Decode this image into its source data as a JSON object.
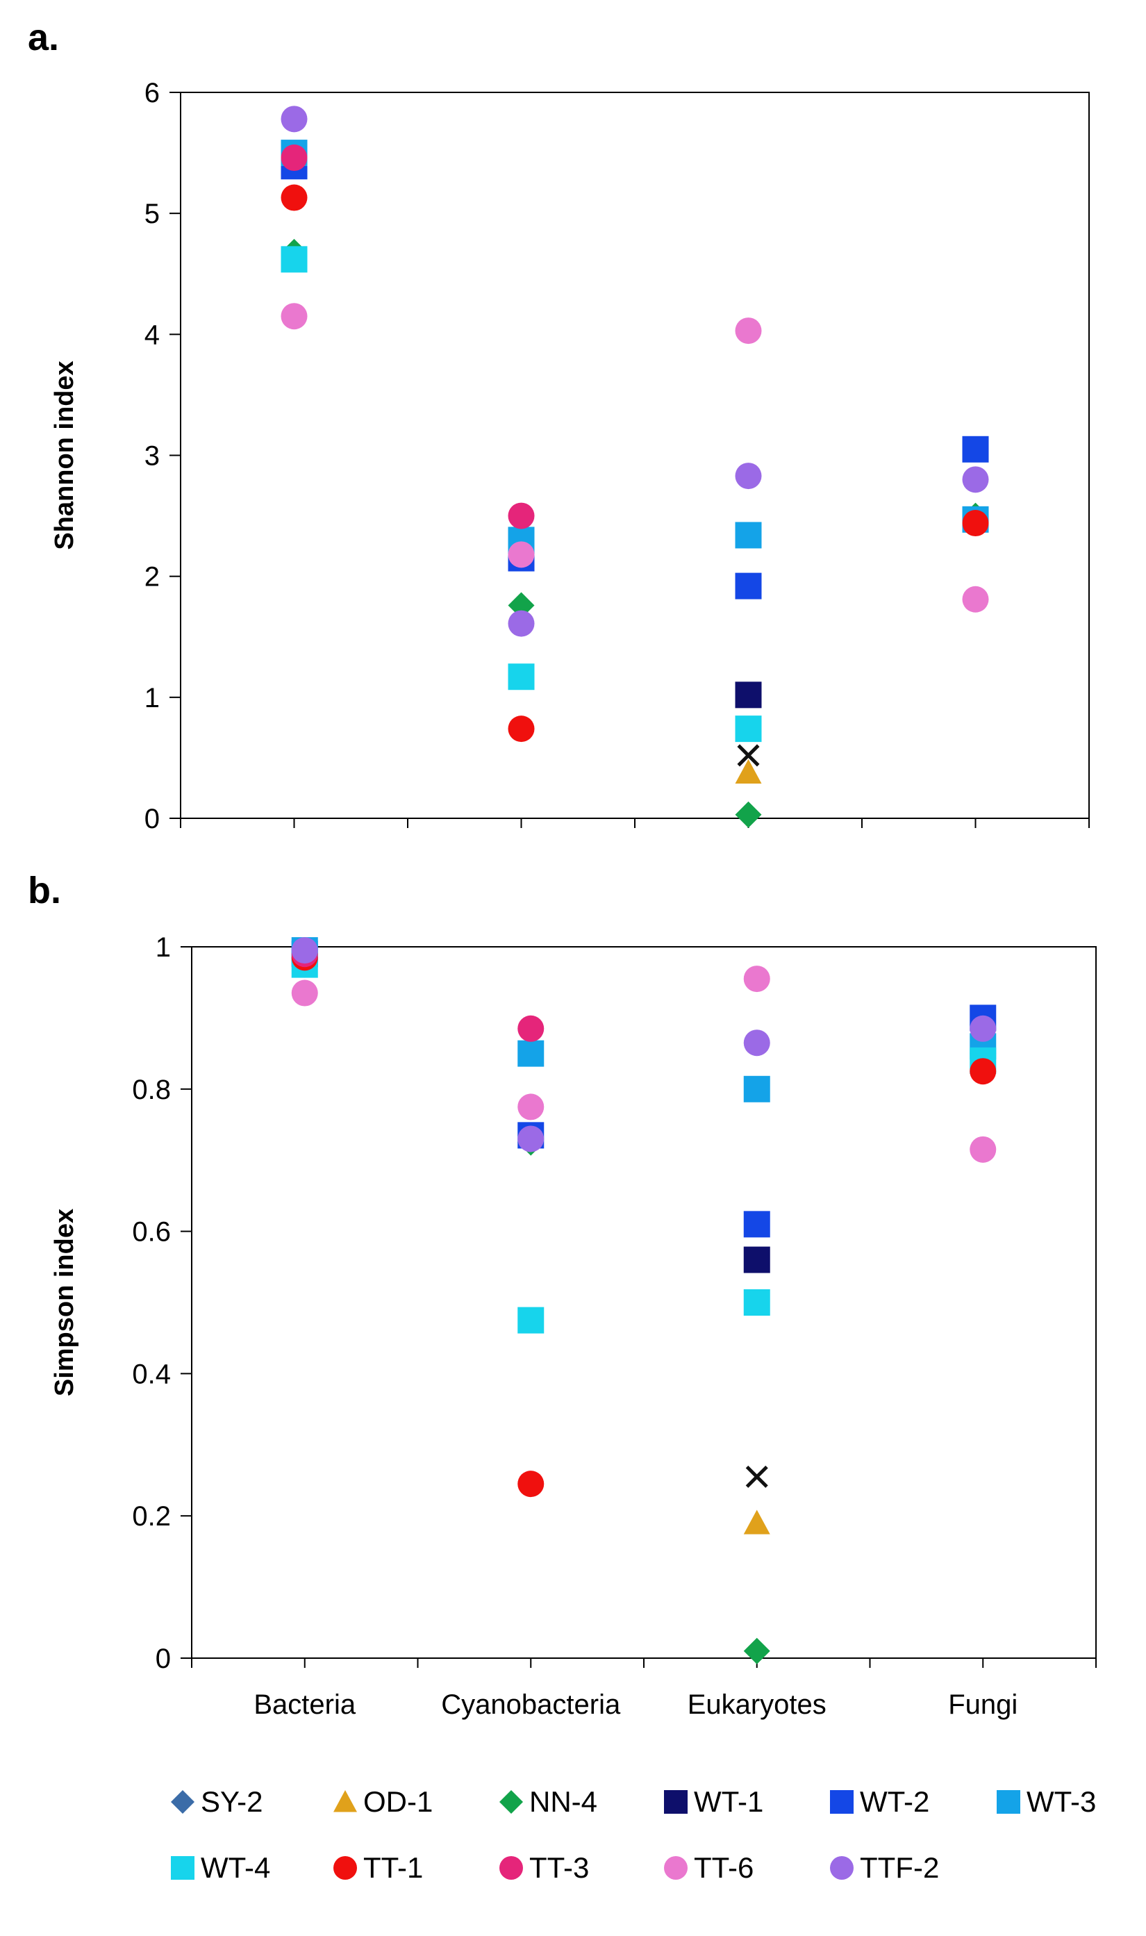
{
  "legend": {
    "series": [
      {
        "name": "SY-2",
        "marker": "diamond",
        "color": "#3b6ca8"
      },
      {
        "name": "OD-1",
        "marker": "triangle",
        "color": "#e0a11b"
      },
      {
        "name": "NN-4",
        "marker": "diamond",
        "color": "#12a34a"
      },
      {
        "name": "WT-1",
        "marker": "square",
        "color": "#0e0f6b"
      },
      {
        "name": "WT-2",
        "marker": "square",
        "color": "#1447e6"
      },
      {
        "name": "WT-3",
        "marker": "square",
        "color": "#14a3e8"
      },
      {
        "name": "WT-4",
        "marker": "square",
        "color": "#17d4ec"
      },
      {
        "name": "TT-1",
        "marker": "circle",
        "color": "#f0100e"
      },
      {
        "name": "TT-3",
        "marker": "circle",
        "color": "#e5257a"
      },
      {
        "name": "TT-6",
        "marker": "circle",
        "color": "#ea78cf"
      },
      {
        "name": "TTF-2",
        "marker": "circle",
        "color": "#9b6ae6"
      },
      {
        "name": "unlabeled",
        "marker": "x",
        "color": "#111111"
      }
    ]
  },
  "chart_data": [
    {
      "type": "scatter",
      "panel_label": "a.",
      "title": "",
      "xlabel": "",
      "ylabel": "Shannon index",
      "categories": [
        "Bacteria",
        "Cyanobacteria",
        "Eukaryotes",
        "Fungi"
      ],
      "show_category_labels": false,
      "ylim": [
        0,
        6
      ],
      "yticks": [
        "0",
        "1",
        "2",
        "3",
        "4",
        "5",
        "6"
      ],
      "series": [
        {
          "name": "SY-2",
          "values": [
            null,
            null,
            null,
            null
          ]
        },
        {
          "name": "OD-1",
          "values": [
            null,
            null,
            0.38,
            null
          ]
        },
        {
          "name": "NN-4",
          "values": [
            4.68,
            1.76,
            0.03,
            2.5
          ]
        },
        {
          "name": "WT-1",
          "values": [
            null,
            null,
            1.02,
            null
          ]
        },
        {
          "name": "WT-2",
          "values": [
            5.39,
            2.15,
            1.92,
            3.05
          ]
        },
        {
          "name": "WT-3",
          "values": [
            5.5,
            2.3,
            2.34,
            2.47
          ]
        },
        {
          "name": "WT-4",
          "values": [
            4.62,
            1.17,
            0.74,
            null
          ]
        },
        {
          "name": "TT-1",
          "values": [
            5.13,
            0.74,
            null,
            2.44
          ]
        },
        {
          "name": "TT-3",
          "values": [
            5.46,
            2.5,
            null,
            null
          ]
        },
        {
          "name": "TT-6",
          "values": [
            4.15,
            2.18,
            4.03,
            1.81
          ]
        },
        {
          "name": "TTF-2",
          "values": [
            5.78,
            1.61,
            2.83,
            2.8
          ]
        },
        {
          "name": "unlabeled",
          "values": [
            null,
            null,
            0.52,
            null
          ]
        }
      ]
    },
    {
      "type": "scatter",
      "panel_label": "b.",
      "title": "",
      "xlabel": "",
      "ylabel": "Simpson index",
      "categories": [
        "Bacteria",
        "Cyanobacteria",
        "Eukaryotes",
        "Fungi"
      ],
      "show_category_labels": true,
      "ylim": [
        0,
        1
      ],
      "yticks": [
        "0",
        "0.2",
        "0.4",
        "0.6",
        "0.8",
        "1"
      ],
      "series": [
        {
          "name": "SY-2",
          "values": [
            null,
            null,
            null,
            null
          ]
        },
        {
          "name": "OD-1",
          "values": [
            null,
            null,
            0.19,
            null
          ]
        },
        {
          "name": "NN-4",
          "values": [
            0.975,
            0.725,
            0.01,
            0.85
          ]
        },
        {
          "name": "WT-1",
          "values": [
            null,
            null,
            0.56,
            null
          ]
        },
        {
          "name": "WT-2",
          "values": [
            0.99,
            0.735,
            0.61,
            0.9
          ]
        },
        {
          "name": "WT-3",
          "values": [
            0.995,
            0.85,
            0.8,
            0.86
          ]
        },
        {
          "name": "WT-4",
          "values": [
            0.975,
            0.475,
            0.5,
            0.84
          ]
        },
        {
          "name": "TT-1",
          "values": [
            0.985,
            0.245,
            null,
            0.825
          ]
        },
        {
          "name": "TT-3",
          "values": [
            0.99,
            0.885,
            null,
            null
          ]
        },
        {
          "name": "TT-6",
          "values": [
            0.935,
            0.775,
            0.955,
            0.715
          ]
        },
        {
          "name": "TTF-2",
          "values": [
            0.995,
            0.73,
            0.865,
            0.885
          ]
        },
        {
          "name": "unlabeled",
          "values": [
            null,
            null,
            0.255,
            null
          ]
        }
      ]
    }
  ]
}
